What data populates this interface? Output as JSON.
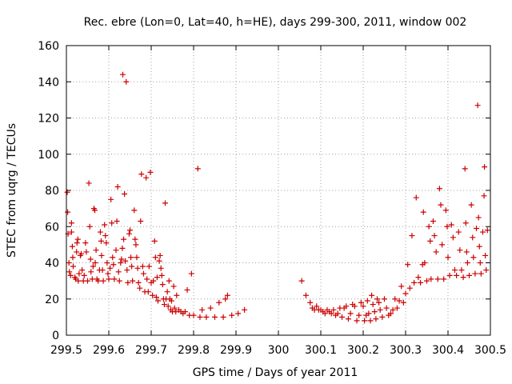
{
  "chart_data": {
    "type": "scatter",
    "title": "Rec. ebre (Lon=0, Lat=40, h=HE), days 299-300, 2011, window 002",
    "xlabel": "GPS time / Days of year 2011",
    "ylabel": "STEC from uqrg / TECUs",
    "xlim": [
      299.5,
      300.5
    ],
    "ylim": [
      0,
      160
    ],
    "xticks": [
      299.5,
      299.6,
      299.7,
      299.8,
      299.9,
      300,
      300.1,
      300.2,
      300.3,
      300.4,
      300.5
    ],
    "xtick_labels": [
      "299.5",
      "299.6",
      "299.7",
      "299.8",
      "299.9",
      "300",
      "300.1",
      "300.2",
      "300.3",
      "300.4",
      "300.5"
    ],
    "yticks": [
      0,
      20,
      40,
      60,
      80,
      100,
      120,
      140,
      160
    ],
    "ytick_labels": [
      "0",
      "20",
      "40",
      "60",
      "80",
      "100",
      "120",
      "140",
      "160"
    ],
    "grid": true,
    "marker": "+",
    "color": "#cc0000",
    "series": [
      {
        "name": "STEC",
        "points": [
          [
            299.502,
            79
          ],
          [
            299.503,
            68
          ],
          [
            299.504,
            56
          ],
          [
            299.506,
            40
          ],
          [
            299.507,
            35
          ],
          [
            299.51,
            33
          ],
          [
            299.512,
            62
          ],
          [
            299.512,
            57
          ],
          [
            299.514,
            49
          ],
          [
            299.515,
            43
          ],
          [
            299.516,
            38
          ],
          [
            299.52,
            32
          ],
          [
            299.522,
            31
          ],
          [
            299.524,
            46
          ],
          [
            299.525,
            51
          ],
          [
            299.527,
            53
          ],
          [
            299.528,
            30
          ],
          [
            299.53,
            34
          ],
          [
            299.533,
            44
          ],
          [
            299.535,
            45
          ],
          [
            299.537,
            36
          ],
          [
            299.54,
            30
          ],
          [
            299.542,
            33
          ],
          [
            299.545,
            51
          ],
          [
            299.547,
            46
          ],
          [
            299.55,
            30
          ],
          [
            299.553,
            84
          ],
          [
            299.555,
            60
          ],
          [
            299.557,
            42
          ],
          [
            299.558,
            35
          ],
          [
            299.561,
            31
          ],
          [
            299.563,
            38
          ],
          [
            299.565,
            70
          ],
          [
            299.567,
            69
          ],
          [
            299.568,
            40
          ],
          [
            299.57,
            47
          ],
          [
            299.572,
            31
          ],
          [
            299.575,
            30
          ],
          [
            299.578,
            36
          ],
          [
            299.58,
            57
          ],
          [
            299.582,
            52
          ],
          [
            299.583,
            44
          ],
          [
            299.585,
            36
          ],
          [
            299.587,
            30
          ],
          [
            299.59,
            61
          ],
          [
            299.592,
            55
          ],
          [
            299.594,
            51
          ],
          [
            299.596,
            40
          ],
          [
            299.598,
            34
          ],
          [
            299.6,
            31
          ],
          [
            299.603,
            37
          ],
          [
            299.605,
            75
          ],
          [
            299.607,
            62
          ],
          [
            299.609,
            43
          ],
          [
            299.611,
            39
          ],
          [
            299.613,
            31
          ],
          [
            299.617,
            47
          ],
          [
            299.619,
            63
          ],
          [
            299.621,
            82
          ],
          [
            299.623,
            35
          ],
          [
            299.625,
            30
          ],
          [
            299.628,
            40
          ],
          [
            299.63,
            42
          ],
          [
            299.632,
            48
          ],
          [
            299.633,
            144
          ],
          [
            299.635,
            53
          ],
          [
            299.637,
            78
          ],
          [
            299.639,
            41
          ],
          [
            299.641,
            140
          ],
          [
            299.643,
            36
          ],
          [
            299.645,
            29
          ],
          [
            299.648,
            56
          ],
          [
            299.65,
            58
          ],
          [
            299.652,
            43
          ],
          [
            299.654,
            38
          ],
          [
            299.656,
            30
          ],
          [
            299.66,
            69
          ],
          [
            299.662,
            53
          ],
          [
            299.664,
            50
          ],
          [
            299.666,
            43
          ],
          [
            299.668,
            37
          ],
          [
            299.67,
            29
          ],
          [
            299.673,
            26
          ],
          [
            299.675,
            63
          ],
          [
            299.677,
            89
          ],
          [
            299.68,
            38
          ],
          [
            299.682,
            34
          ],
          [
            299.685,
            24
          ],
          [
            299.688,
            87
          ],
          [
            299.69,
            31
          ],
          [
            299.693,
            24
          ],
          [
            299.695,
            38
          ],
          [
            299.698,
            90
          ],
          [
            299.7,
            29
          ],
          [
            299.703,
            22
          ],
          [
            299.705,
            30
          ],
          [
            299.708,
            52
          ],
          [
            299.71,
            43
          ],
          [
            299.712,
            21
          ],
          [
            299.714,
            32
          ],
          [
            299.716,
            19
          ],
          [
            299.719,
            41
          ],
          [
            299.721,
            44
          ],
          [
            299.723,
            37
          ],
          [
            299.725,
            33
          ],
          [
            299.727,
            28
          ],
          [
            299.729,
            20
          ],
          [
            299.731,
            17
          ],
          [
            299.733,
            73
          ],
          [
            299.735,
            20
          ],
          [
            299.738,
            24
          ],
          [
            299.74,
            16
          ],
          [
            299.742,
            30
          ],
          [
            299.744,
            20
          ],
          [
            299.746,
            14
          ],
          [
            299.748,
            19
          ],
          [
            299.75,
            13
          ],
          [
            299.753,
            27
          ],
          [
            299.755,
            15
          ],
          [
            299.758,
            13
          ],
          [
            299.76,
            22
          ],
          [
            299.765,
            14
          ],
          [
            299.77,
            13
          ],
          [
            299.775,
            12
          ],
          [
            299.78,
            13
          ],
          [
            299.785,
            25
          ],
          [
            299.79,
            11
          ],
          [
            299.795,
            34
          ],
          [
            299.8,
            11
          ],
          [
            299.81,
            92
          ],
          [
            299.815,
            10
          ],
          [
            299.82,
            14
          ],
          [
            299.83,
            10
          ],
          [
            299.84,
            15
          ],
          [
            299.85,
            10
          ],
          [
            299.86,
            18
          ],
          [
            299.87,
            10
          ],
          [
            299.875,
            20
          ],
          [
            299.88,
            22
          ],
          [
            299.89,
            11
          ],
          [
            299.905,
            12
          ],
          [
            299.92,
            14
          ],
          [
            300.055,
            30
          ],
          [
            300.065,
            22
          ],
          [
            300.075,
            18
          ],
          [
            300.08,
            15
          ],
          [
            300.085,
            14
          ],
          [
            300.09,
            16
          ],
          [
            300.095,
            14
          ],
          [
            300.1,
            14
          ],
          [
            300.105,
            13
          ],
          [
            300.11,
            12
          ],
          [
            300.115,
            14
          ],
          [
            300.12,
            13
          ],
          [
            300.125,
            12
          ],
          [
            300.13,
            14
          ],
          [
            300.135,
            11
          ],
          [
            300.14,
            12
          ],
          [
            300.145,
            15
          ],
          [
            300.15,
            10
          ],
          [
            300.155,
            15
          ],
          [
            300.16,
            16
          ],
          [
            300.165,
            9
          ],
          [
            300.17,
            12
          ],
          [
            300.175,
            17
          ],
          [
            300.18,
            16
          ],
          [
            300.185,
            8
          ],
          [
            300.19,
            11
          ],
          [
            300.195,
            18
          ],
          [
            300.2,
            16
          ],
          [
            300.203,
            8
          ],
          [
            300.207,
            11
          ],
          [
            300.21,
            19
          ],
          [
            300.213,
            12
          ],
          [
            300.217,
            8
          ],
          [
            300.22,
            22
          ],
          [
            300.223,
            17
          ],
          [
            300.227,
            13
          ],
          [
            300.23,
            9
          ],
          [
            300.233,
            20
          ],
          [
            300.237,
            18
          ],
          [
            300.24,
            14
          ],
          [
            300.245,
            10
          ],
          [
            300.25,
            20
          ],
          [
            300.255,
            15
          ],
          [
            300.26,
            11
          ],
          [
            300.265,
            12
          ],
          [
            300.27,
            14
          ],
          [
            300.275,
            20
          ],
          [
            300.28,
            15
          ],
          [
            300.285,
            19
          ],
          [
            300.29,
            27
          ],
          [
            300.295,
            18
          ],
          [
            300.3,
            23
          ],
          [
            300.305,
            39
          ],
          [
            300.31,
            26
          ],
          [
            300.315,
            55
          ],
          [
            300.32,
            29
          ],
          [
            300.325,
            76
          ],
          [
            300.33,
            32
          ],
          [
            300.335,
            29
          ],
          [
            300.34,
            39
          ],
          [
            300.342,
            68
          ],
          [
            300.345,
            40
          ],
          [
            300.35,
            30
          ],
          [
            300.355,
            60
          ],
          [
            300.358,
            52
          ],
          [
            300.36,
            31
          ],
          [
            300.365,
            63
          ],
          [
            300.368,
            55
          ],
          [
            300.372,
            46
          ],
          [
            300.376,
            31
          ],
          [
            300.38,
            81
          ],
          [
            300.383,
            72
          ],
          [
            300.386,
            50
          ],
          [
            300.39,
            31
          ],
          [
            300.395,
            69
          ],
          [
            300.398,
            60
          ],
          [
            300.4,
            43
          ],
          [
            300.404,
            33
          ],
          [
            300.408,
            61
          ],
          [
            300.412,
            54
          ],
          [
            300.416,
            36
          ],
          [
            300.42,
            33
          ],
          [
            300.425,
            57
          ],
          [
            300.428,
            47
          ],
          [
            300.432,
            36
          ],
          [
            300.436,
            32
          ],
          [
            300.44,
            92
          ],
          [
            300.442,
            62
          ],
          [
            300.444,
            46
          ],
          [
            300.446,
            40
          ],
          [
            300.45,
            33
          ],
          [
            300.455,
            72
          ],
          [
            300.458,
            54
          ],
          [
            300.46,
            43
          ],
          [
            300.464,
            34
          ],
          [
            300.467,
            59
          ],
          [
            300.47,
            127
          ],
          [
            300.472,
            65
          ],
          [
            300.474,
            49
          ],
          [
            300.476,
            40
          ],
          [
            300.478,
            34
          ],
          [
            300.482,
            57
          ],
          [
            300.485,
            77
          ],
          [
            300.486,
            93
          ],
          [
            300.488,
            44
          ],
          [
            300.49,
            36
          ],
          [
            300.493,
            58
          ]
        ]
      }
    ]
  }
}
